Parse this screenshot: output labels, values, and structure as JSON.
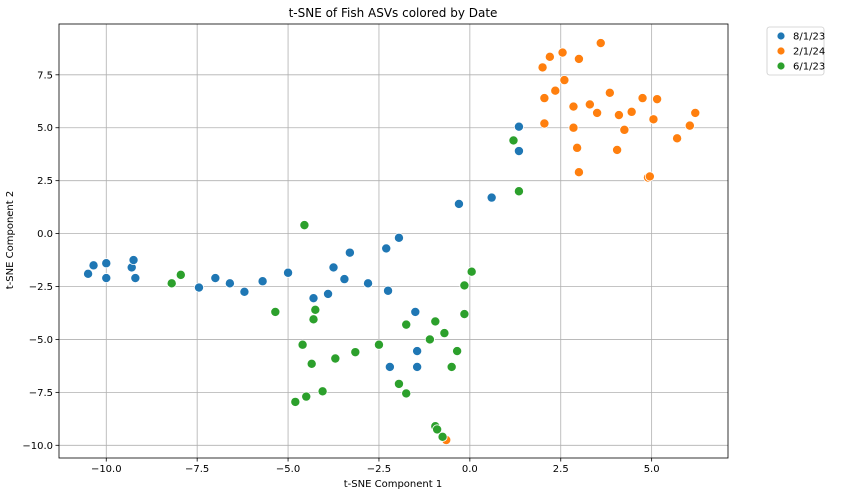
{
  "chart_data": {
    "type": "scatter",
    "title": "t-SNE of Fish ASVs colored by Date",
    "xlabel": "t-SNE Component 1",
    "ylabel": "t-SNE Component 2",
    "xlim": [
      -11.3,
      7.1
    ],
    "ylim": [
      -10.6,
      9.9
    ],
    "x_ticks": [
      -10,
      -7.5,
      -5,
      -2.5,
      0,
      2.5,
      5
    ],
    "x_tick_labels": [
      "−10.0",
      "−7.5",
      "−5.0",
      "−2.5",
      "0.0",
      "2.5",
      "5.0"
    ],
    "y_ticks": [
      -10,
      -7.5,
      -5,
      -2.5,
      0,
      2.5,
      5,
      7.5
    ],
    "y_tick_labels": [
      "−10.0",
      "−7.5",
      "−5.0",
      "−2.5",
      "0.0",
      "2.5",
      "5.0",
      "7.5"
    ],
    "grid": true,
    "legend_position": "outside-top-right",
    "series": [
      {
        "name": "8/1/23",
        "color": "#1f77b4",
        "points": [
          [
            -10.5,
            -1.9
          ],
          [
            -10.35,
            -1.5
          ],
          [
            -10.0,
            -1.4
          ],
          [
            -10.0,
            -2.1
          ],
          [
            -9.3,
            -1.6
          ],
          [
            -9.25,
            -1.25
          ],
          [
            -9.2,
            -2.1
          ],
          [
            -7.45,
            -2.55
          ],
          [
            -7.0,
            -2.1
          ],
          [
            -6.6,
            -2.35
          ],
          [
            -6.2,
            -2.75
          ],
          [
            -5.7,
            -2.25
          ],
          [
            -5.0,
            -1.85
          ],
          [
            -4.3,
            -3.05
          ],
          [
            -3.9,
            -2.85
          ],
          [
            -3.75,
            -1.6
          ],
          [
            -3.45,
            -2.15
          ],
          [
            -3.3,
            -0.9
          ],
          [
            -2.8,
            -2.35
          ],
          [
            -2.3,
            -0.7
          ],
          [
            -2.25,
            -2.7
          ],
          [
            -2.2,
            -6.3
          ],
          [
            -1.95,
            -0.2
          ],
          [
            -1.5,
            -3.7
          ],
          [
            -1.45,
            -5.55
          ],
          [
            -1.45,
            -6.3
          ],
          [
            -0.3,
            1.4
          ],
          [
            0.6,
            1.7
          ],
          [
            1.35,
            3.9
          ],
          [
            1.35,
            5.05
          ]
        ]
      },
      {
        "name": "2/1/24",
        "color": "#ff7f0e",
        "points": [
          [
            2.0,
            7.85
          ],
          [
            2.2,
            8.35
          ],
          [
            2.55,
            8.55
          ],
          [
            3.0,
            8.25
          ],
          [
            3.6,
            9.0
          ],
          [
            2.05,
            6.4
          ],
          [
            2.35,
            6.75
          ],
          [
            2.6,
            7.25
          ],
          [
            2.85,
            6.0
          ],
          [
            3.3,
            6.1
          ],
          [
            3.85,
            6.65
          ],
          [
            2.05,
            5.2
          ],
          [
            2.85,
            5.0
          ],
          [
            2.95,
            4.05
          ],
          [
            3.5,
            5.7
          ],
          [
            4.1,
            5.6
          ],
          [
            4.45,
            5.75
          ],
          [
            4.25,
            4.9
          ],
          [
            4.75,
            6.4
          ],
          [
            5.15,
            6.35
          ],
          [
            5.05,
            5.4
          ],
          [
            6.05,
            5.1
          ],
          [
            6.2,
            5.7
          ],
          [
            5.7,
            4.5
          ],
          [
            4.05,
            3.95
          ],
          [
            3.0,
            2.9
          ],
          [
            4.9,
            2.65
          ],
          [
            4.95,
            2.7
          ],
          [
            -0.65,
            -9.75
          ]
        ]
      },
      {
        "name": "6/1/23",
        "color": "#2ca02c",
        "points": [
          [
            1.2,
            4.4
          ],
          [
            1.35,
            2.0
          ],
          [
            0.05,
            -1.8
          ],
          [
            -0.15,
            -2.45
          ],
          [
            -0.15,
            -3.8
          ],
          [
            -0.35,
            -5.55
          ],
          [
            -0.5,
            -6.3
          ],
          [
            -0.7,
            -4.7
          ],
          [
            -0.95,
            -4.15
          ],
          [
            -1.1,
            -5.0
          ],
          [
            -1.75,
            -4.3
          ],
          [
            -2.5,
            -5.25
          ],
          [
            -1.75,
            -7.55
          ],
          [
            -1.95,
            -7.1
          ],
          [
            -3.15,
            -5.6
          ],
          [
            -3.7,
            -5.9
          ],
          [
            -4.05,
            -7.45
          ],
          [
            -4.25,
            -3.6
          ],
          [
            -4.3,
            -4.05
          ],
          [
            -4.35,
            -6.15
          ],
          [
            -4.6,
            -5.25
          ],
          [
            -4.5,
            -7.7
          ],
          [
            -4.8,
            -7.95
          ],
          [
            -5.35,
            -3.7
          ],
          [
            -4.55,
            0.4
          ],
          [
            -7.95,
            -1.95
          ],
          [
            -8.2,
            -2.35
          ],
          [
            -0.95,
            -9.1
          ],
          [
            -0.9,
            -9.25
          ],
          [
            -0.75,
            -9.6
          ]
        ]
      }
    ]
  }
}
